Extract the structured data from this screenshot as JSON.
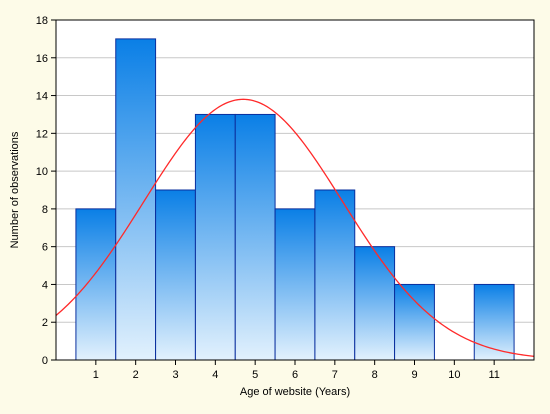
{
  "chart_data": {
    "type": "bar",
    "title": "",
    "xlabel": "Age of website (Years)",
    "ylabel": "Number of observations",
    "categories": [
      "1",
      "2",
      "3",
      "4",
      "5",
      "6",
      "7",
      "8",
      "9",
      "10",
      "11"
    ],
    "values": [
      8,
      17,
      9,
      13,
      13,
      8,
      9,
      6,
      4,
      0,
      4
    ],
    "ylim": [
      0,
      18
    ],
    "yticks": [
      "0",
      "2",
      "4",
      "6",
      "8",
      "10",
      "12",
      "14",
      "16",
      "18"
    ],
    "xlim": [
      0,
      12
    ],
    "grid": "horizontal",
    "legend": "none",
    "fit_curve": {
      "type": "normal",
      "mean": 4.7,
      "sd": 2.5,
      "peak": 13.8,
      "color": "#ff2a2a"
    },
    "colors": {
      "bar_top": "#0a7fe6",
      "bar_bottom": "#e2f1fd",
      "bar_edge": "#0a2f9e",
      "background": "#fdfbe8",
      "plot_bg": "#ffffff",
      "grid": "#c8c8c8"
    }
  }
}
